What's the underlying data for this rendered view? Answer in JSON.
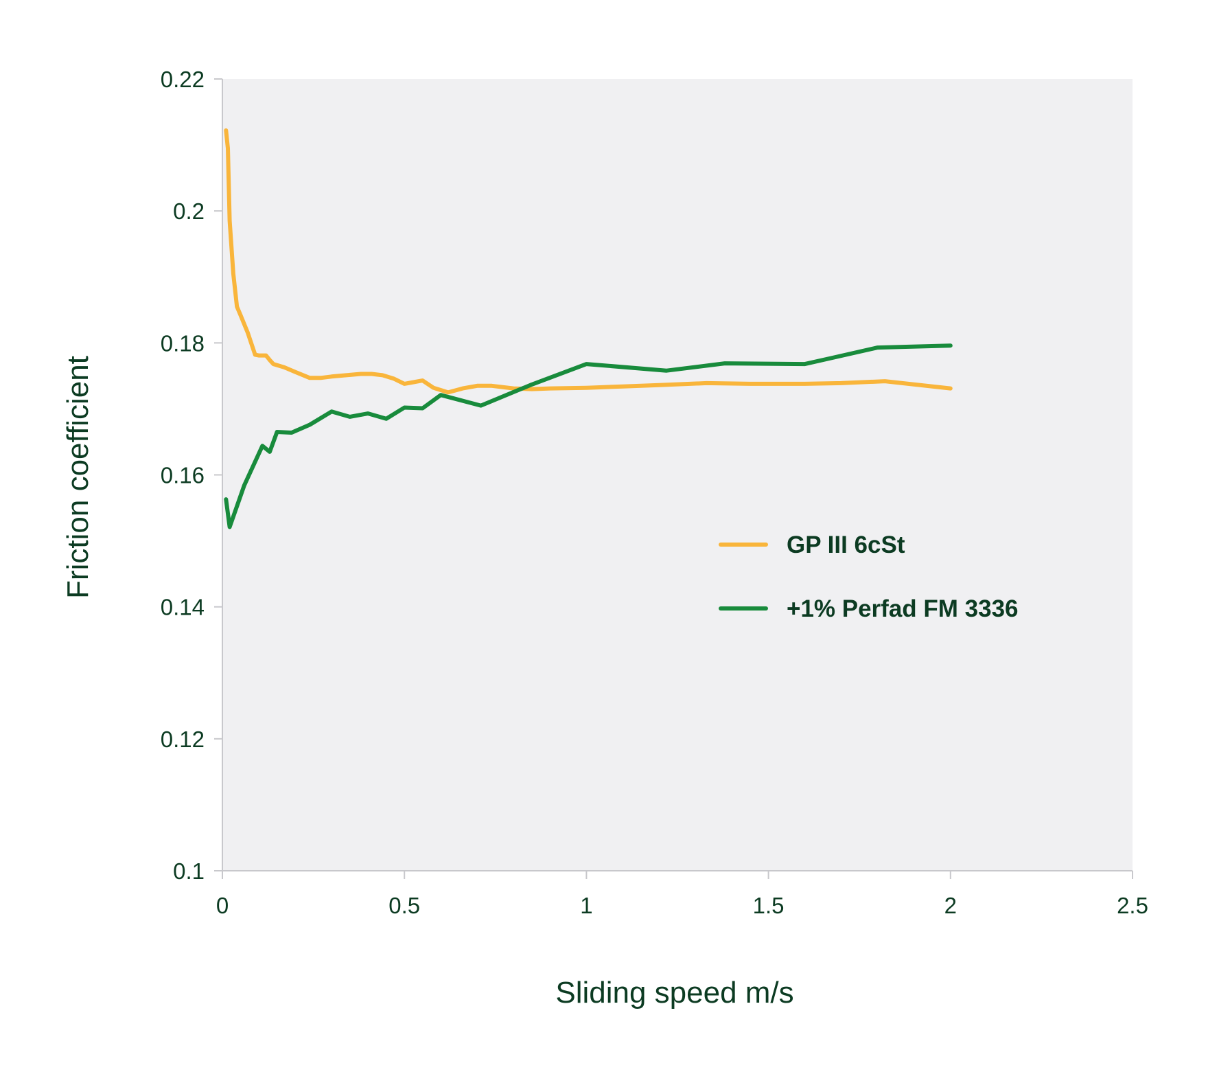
{
  "chart_data": {
    "type": "line",
    "title": "",
    "xlabel": "Sliding speed m/s",
    "ylabel": "Friction coefficient",
    "xlim": [
      0,
      2.5
    ],
    "ylim": [
      0.1,
      0.22
    ],
    "x_ticks": [
      0,
      0.5,
      1,
      1.5,
      2,
      2.5
    ],
    "x_tick_labels": [
      "0",
      "0.5",
      "1",
      "1.5",
      "2",
      "2.5"
    ],
    "y_ticks": [
      0.1,
      0.12,
      0.14,
      0.16,
      0.18,
      0.2,
      0.22
    ],
    "y_tick_labels": [
      "0.1",
      "0.12",
      "0.14",
      "0.16",
      "0.18",
      "0.2",
      "0.22"
    ],
    "grid": false,
    "legend_position": "right",
    "plot_background": "#f0f0f2",
    "axis_color": "#c8c8cc",
    "text_color": "#0c3b22",
    "series": [
      {
        "name": "GP III 6cSt",
        "color": "#f9b53b",
        "x": [
          0.01,
          0.015,
          0.02,
          0.03,
          0.04,
          0.05,
          0.07,
          0.09,
          0.1,
          0.12,
          0.13,
          0.14,
          0.17,
          0.2,
          0.24,
          0.27,
          0.3,
          0.34,
          0.38,
          0.41,
          0.44,
          0.47,
          0.5,
          0.52,
          0.55,
          0.58,
          0.62,
          0.66,
          0.7,
          0.74,
          0.8,
          0.85,
          0.9,
          1.0,
          1.1,
          1.2,
          1.33,
          1.45,
          1.6,
          1.7,
          1.82,
          2.0
        ],
        "y": [
          0.2122,
          0.2095,
          0.1985,
          0.1905,
          0.1855,
          0.1842,
          0.1815,
          0.1782,
          0.1781,
          0.1781,
          0.1774,
          0.1768,
          0.1763,
          0.1756,
          0.1747,
          0.1747,
          0.1749,
          0.1751,
          0.1753,
          0.1753,
          0.1751,
          0.1746,
          0.1738,
          0.174,
          0.1743,
          0.1732,
          0.1725,
          0.1731,
          0.1735,
          0.1735,
          0.1731,
          0.173,
          0.1731,
          0.1732,
          0.1734,
          0.1736,
          0.1739,
          0.1738,
          0.1738,
          0.1739,
          0.1742,
          0.1731
        ]
      },
      {
        "name": "+1% Perfad FM 3336",
        "color": "#188b3c",
        "x": [
          0.01,
          0.02,
          0.06,
          0.11,
          0.13,
          0.15,
          0.19,
          0.24,
          0.3,
          0.35,
          0.4,
          0.45,
          0.5,
          0.55,
          0.6,
          0.71,
          0.85,
          1.0,
          1.22,
          1.38,
          1.6,
          1.68,
          1.8,
          2.0
        ],
        "y": [
          0.1563,
          0.1521,
          0.1584,
          0.1644,
          0.1635,
          0.1665,
          0.1664,
          0.1676,
          0.1696,
          0.1688,
          0.1693,
          0.1685,
          0.1702,
          0.1701,
          0.1721,
          0.1705,
          0.1737,
          0.1768,
          0.1758,
          0.1769,
          0.1768,
          0.1778,
          0.1793,
          0.1796
        ]
      }
    ]
  }
}
